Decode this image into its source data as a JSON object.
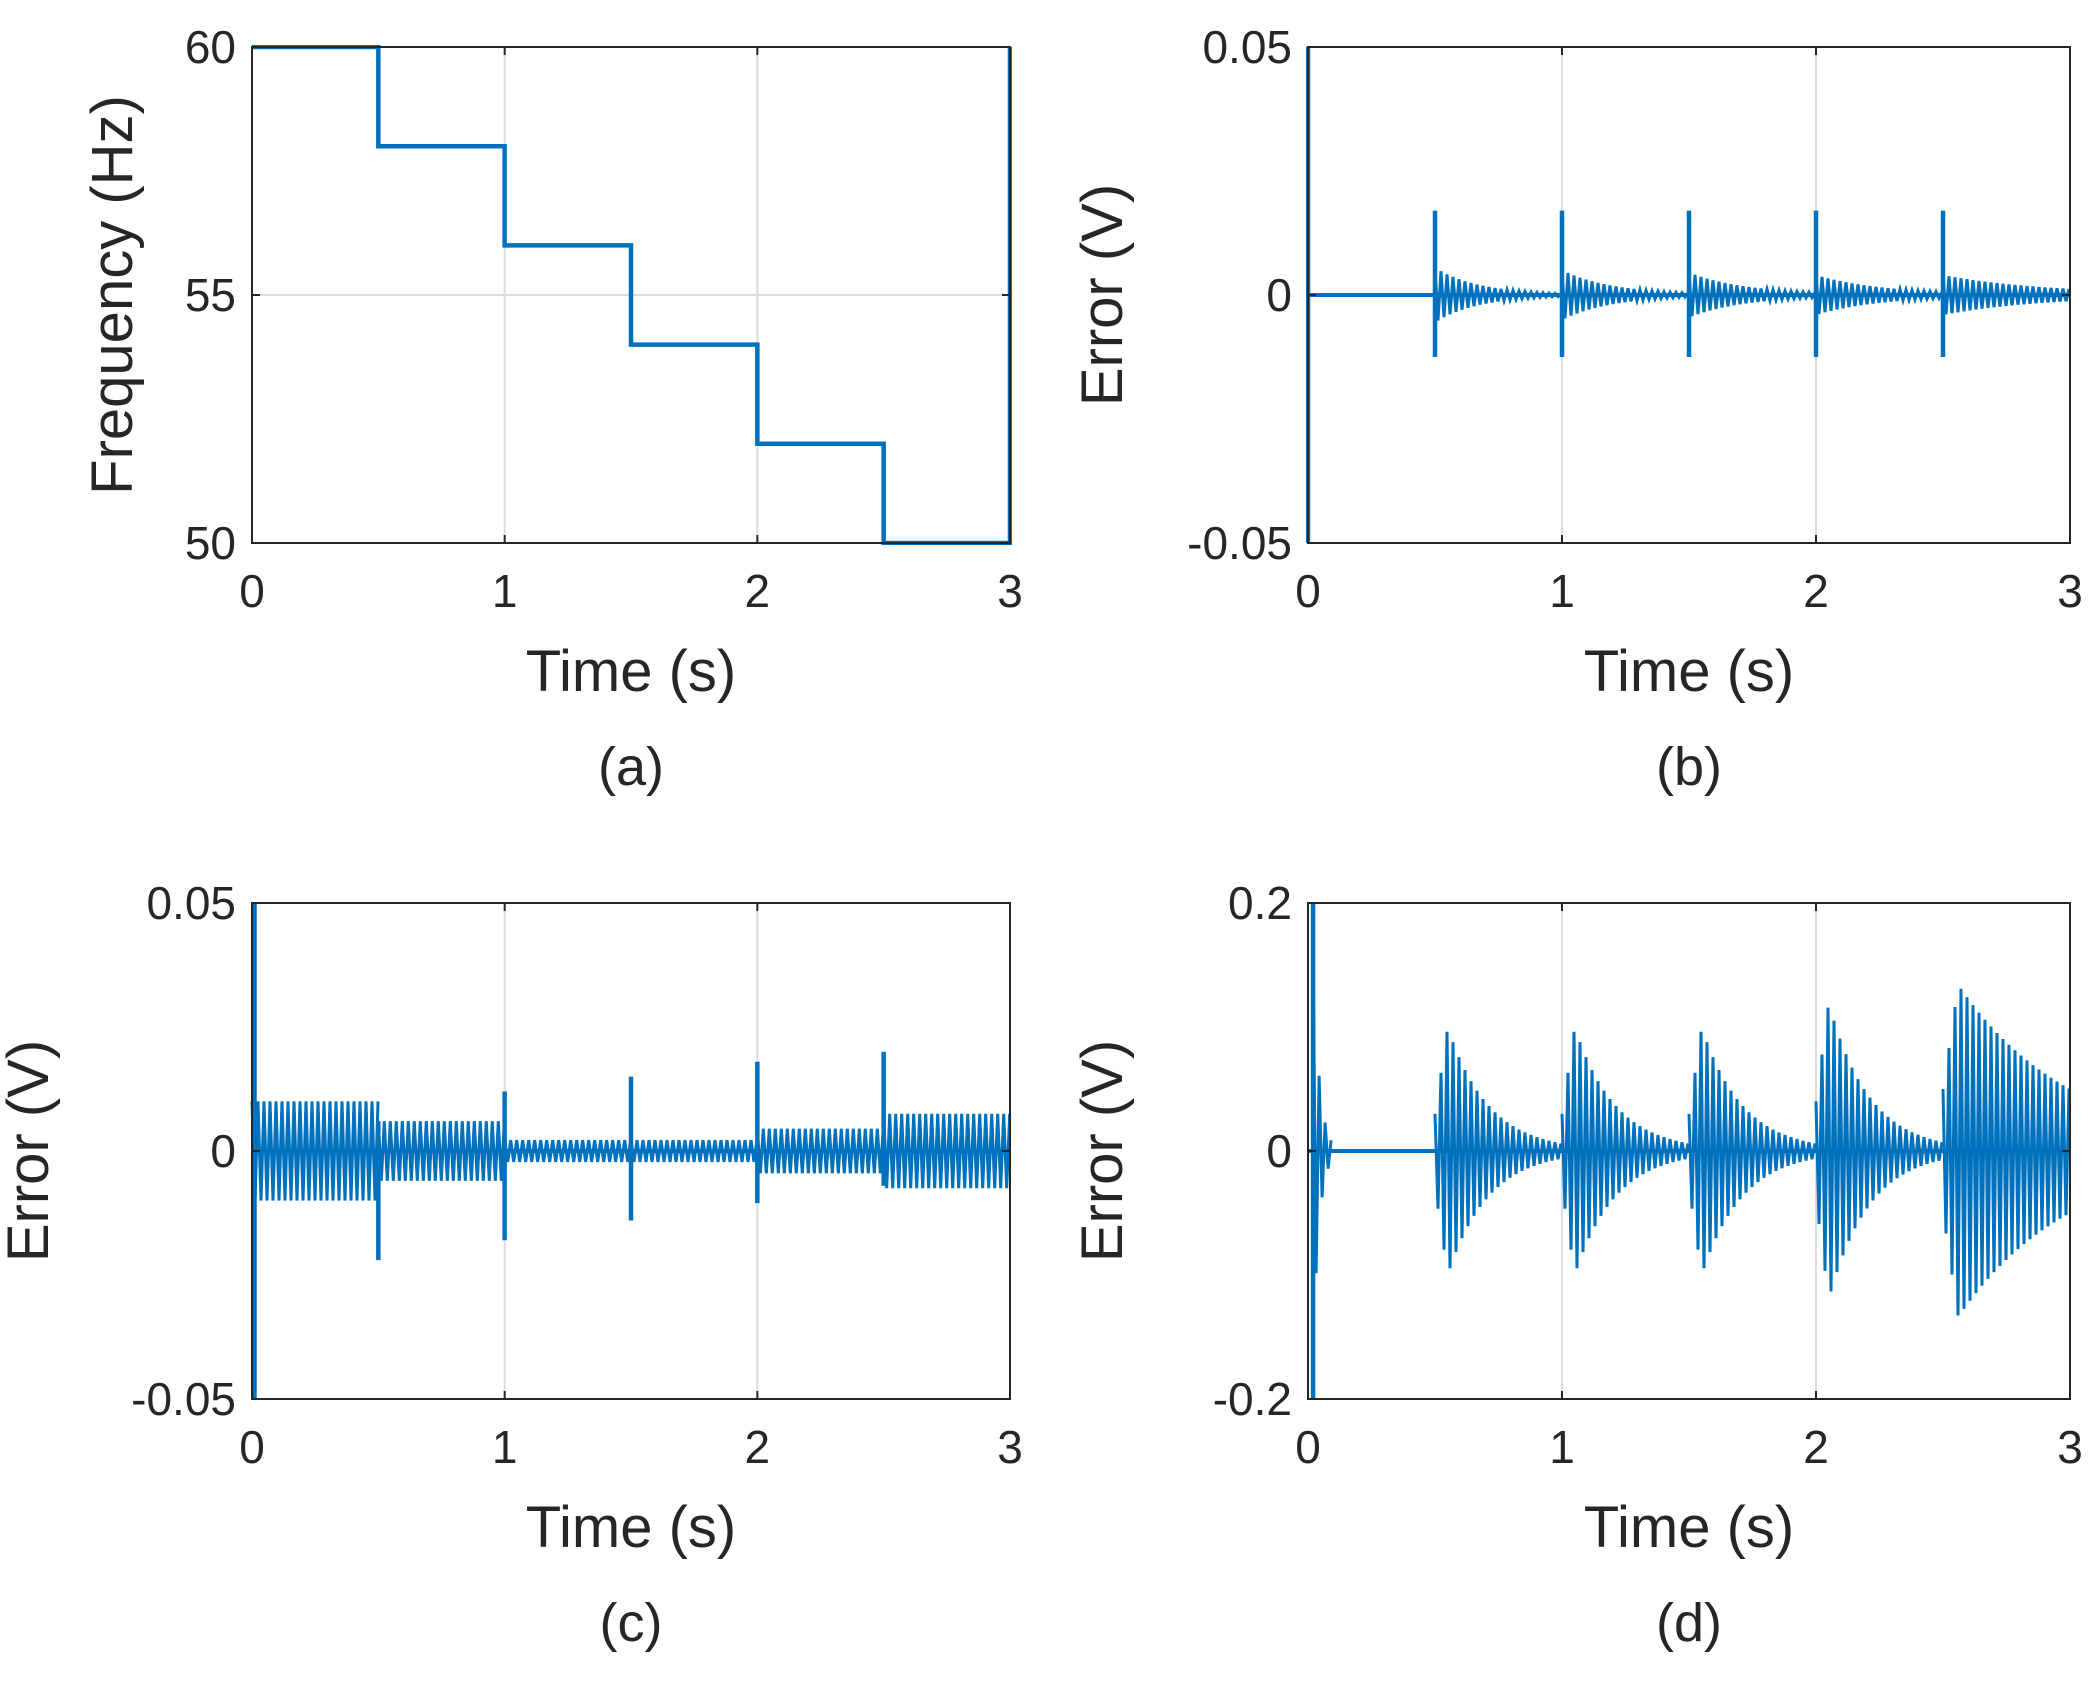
{
  "line_color": "#0072BD",
  "chart_data": [
    {
      "id": "a",
      "type": "line",
      "caption": "(a)",
      "xlabel": "Time (s)",
      "ylabel": "Frequency (Hz)",
      "xlim": [
        0,
        3
      ],
      "ylim": [
        50,
        60
      ],
      "xticks": [
        0,
        1,
        2,
        3
      ],
      "xtick_labels": [
        "0",
        "1",
        "2",
        "3"
      ],
      "yticks": [
        50,
        55,
        60
      ],
      "ytick_labels": [
        "50",
        "55",
        "60"
      ],
      "grid": true,
      "series": [
        {
          "name": "frequency",
          "kind": "step",
          "x": [
            0,
            0.5,
            0.5,
            1.0,
            1.0,
            1.5,
            1.5,
            2.0,
            2.0,
            2.5,
            2.5,
            3.0,
            3.0
          ],
          "y": [
            60,
            60,
            58,
            58,
            56,
            56,
            54,
            54,
            52,
            52,
            50,
            50,
            60
          ]
        }
      ]
    },
    {
      "id": "b",
      "type": "line",
      "caption": "(b)",
      "xlabel": "Time (s)",
      "ylabel": "Error (V)",
      "xlim": [
        0,
        3
      ],
      "ylim": [
        -0.05,
        0.05
      ],
      "xticks": [
        0,
        1,
        2,
        3
      ],
      "xtick_labels": [
        "0",
        "1",
        "2",
        "3"
      ],
      "yticks": [
        -0.05,
        0,
        0.05
      ],
      "ytick_labels": [
        "-0.05",
        "0",
        "0.05"
      ],
      "grid": true,
      "series": [
        {
          "name": "error",
          "kind": "oscillation",
          "initial_spike": {
            "t": 0.0,
            "max": 0.05,
            "min": -0.05
          },
          "baseline": 0,
          "segments": [
            {
              "t0": 0.5,
              "t1": 1.0,
              "spike_max": 0.017,
              "spike_min": -0.0125,
              "start_amp": 0.0055,
              "end_amp": 0.0003
            },
            {
              "t0": 1.0,
              "t1": 1.5,
              "spike_max": 0.017,
              "spike_min": -0.0125,
              "start_amp": 0.005,
              "end_amp": 0.0004
            },
            {
              "t0": 1.5,
              "t1": 2.0,
              "spike_max": 0.017,
              "spike_min": -0.0125,
              "start_amp": 0.0045,
              "end_amp": 0.0005
            },
            {
              "t0": 2.0,
              "t1": 2.5,
              "spike_max": 0.017,
              "spike_min": -0.0125,
              "start_amp": 0.004,
              "end_amp": 0.0006
            },
            {
              "t0": 2.5,
              "t1": 3.0,
              "spike_max": 0.017,
              "spike_min": -0.0125,
              "start_amp": 0.004,
              "end_amp": 0.0012
            }
          ]
        }
      ]
    },
    {
      "id": "c",
      "type": "line",
      "caption": "(c)",
      "xlabel": "Time (s)",
      "ylabel": "Error (V)",
      "xlim": [
        0,
        3
      ],
      "ylim": [
        -0.05,
        0.05
      ],
      "xticks": [
        0,
        1,
        2,
        3
      ],
      "xtick_labels": [
        "0",
        "1",
        "2",
        "3"
      ],
      "yticks": [
        -0.05,
        0,
        0.05
      ],
      "ytick_labels": [
        "-0.05",
        "0",
        "0.05"
      ],
      "grid": true,
      "series": [
        {
          "name": "error",
          "kind": "oscillation",
          "initial_spike": {
            "t": 0.01,
            "max": 0.05,
            "min": -0.05
          },
          "baseline": 0,
          "segments": [
            {
              "t0": 0.0,
              "t1": 0.5,
              "spike_max": 0.0,
              "spike_min": 0.0,
              "start_amp": 0.01,
              "end_amp": 0.01
            },
            {
              "t0": 0.5,
              "t1": 1.0,
              "spike_max": 0.006,
              "spike_min": -0.022,
              "start_amp": 0.006,
              "end_amp": 0.006
            },
            {
              "t0": 1.0,
              "t1": 1.5,
              "spike_max": 0.012,
              "spike_min": -0.018,
              "start_amp": 0.0022,
              "end_amp": 0.0022
            },
            {
              "t0": 1.5,
              "t1": 2.0,
              "spike_max": 0.015,
              "spike_min": -0.014,
              "start_amp": 0.0022,
              "end_amp": 0.0022
            },
            {
              "t0": 2.0,
              "t1": 2.5,
              "spike_max": 0.018,
              "spike_min": -0.0105,
              "start_amp": 0.0045,
              "end_amp": 0.0045
            },
            {
              "t0": 2.5,
              "t1": 3.0,
              "spike_max": 0.02,
              "spike_min": -0.007,
              "start_amp": 0.0075,
              "end_amp": 0.0075
            }
          ]
        }
      ]
    },
    {
      "id": "d",
      "type": "line",
      "caption": "(d)",
      "xlabel": "Time (s)",
      "ylabel": "Error (V)",
      "xlim": [
        0,
        3
      ],
      "ylim": [
        -0.2,
        0.2
      ],
      "xticks": [
        0,
        1,
        2,
        3
      ],
      "xtick_labels": [
        "0",
        "1",
        "2",
        "3"
      ],
      "yticks": [
        -0.2,
        0,
        0.2
      ],
      "ytick_labels": [
        "-0.2",
        "0",
        "0.2"
      ],
      "grid": true,
      "series": [
        {
          "name": "error",
          "kind": "oscillation",
          "initial_spike": {
            "t": 0.02,
            "max": 0.2,
            "min": -0.2
          },
          "initial_decay": {
            "t0": 0.02,
            "t1": 0.1,
            "start_amp": 0.16,
            "end_amp": 0.006
          },
          "baseline": 0,
          "segments": [
            {
              "t0": 0.5,
              "t1": 1.0,
              "peak_t": 0.55,
              "start_amp": 0.03,
              "peak_amp": 0.1,
              "end_amp": 0.006
            },
            {
              "t0": 1.0,
              "t1": 1.5,
              "peak_t": 1.05,
              "start_amp": 0.03,
              "peak_amp": 0.1,
              "end_amp": 0.006
            },
            {
              "t0": 1.5,
              "t1": 2.0,
              "peak_t": 1.55,
              "start_amp": 0.03,
              "peak_amp": 0.1,
              "end_amp": 0.006
            },
            {
              "t0": 2.0,
              "t1": 2.5,
              "peak_t": 2.05,
              "start_amp": 0.04,
              "peak_amp": 0.12,
              "end_amp": 0.007
            },
            {
              "t0": 2.5,
              "t1": 3.0,
              "peak_t": 2.56,
              "start_amp": 0.05,
              "peak_amp": 0.134,
              "end_amp": 0.05
            }
          ]
        }
      ]
    }
  ]
}
